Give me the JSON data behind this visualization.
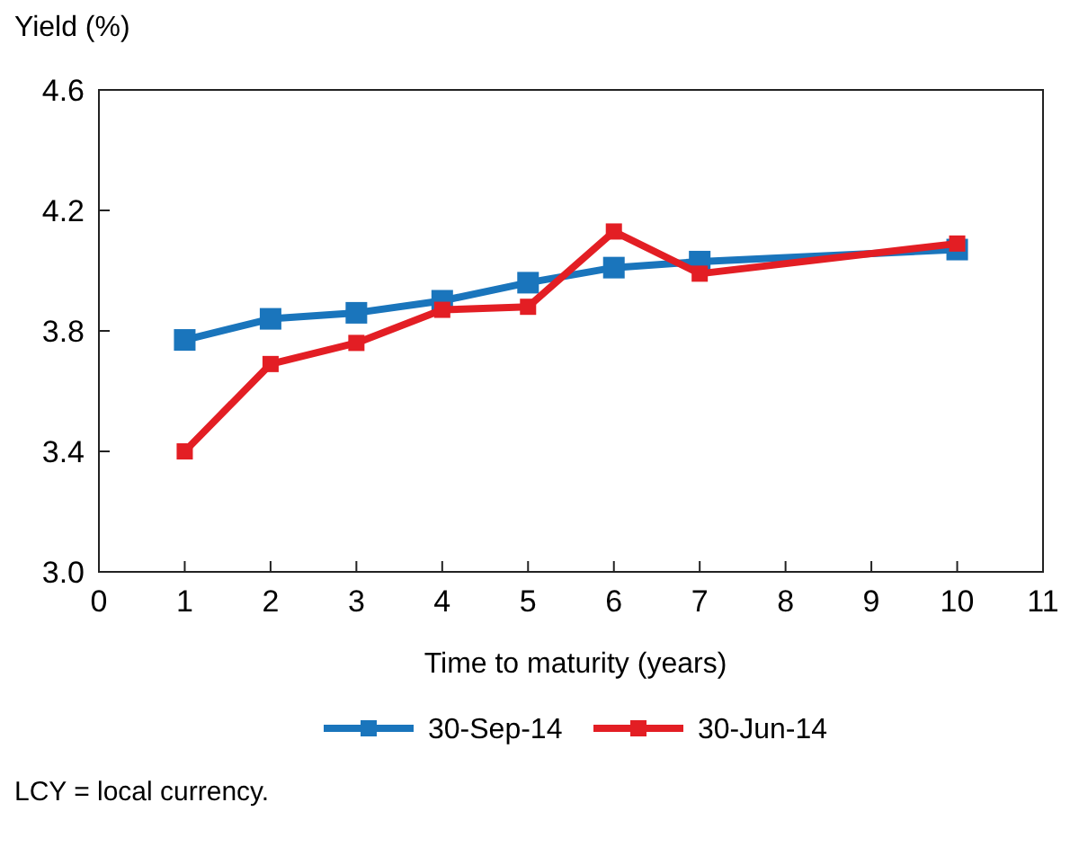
{
  "chart_data": {
    "type": "line",
    "ylabel": "Yield (%)",
    "xlabel": "Time to maturity (years)",
    "xlim": [
      0,
      11
    ],
    "xticks": [
      0,
      1,
      2,
      3,
      4,
      5,
      6,
      7,
      8,
      9,
      10,
      11
    ],
    "ylim": [
      3.0,
      4.6
    ],
    "yticks": [
      {
        "value": 3.0,
        "label": "3.0"
      },
      {
        "value": 3.4,
        "label": "3.4"
      },
      {
        "value": 3.8,
        "label": "3.8"
      },
      {
        "value": 4.2,
        "label": "4.2"
      },
      {
        "value": 4.6,
        "label": "4.6"
      }
    ],
    "grid": false,
    "legend": "bottom",
    "marker": "square",
    "line_style": "solid",
    "series": [
      {
        "name": "30-Sep-14",
        "color": "#1a75bc",
        "x": [
          1,
          2,
          3,
          4,
          5,
          6,
          7,
          10
        ],
        "values": [
          3.77,
          3.84,
          3.86,
          3.9,
          3.96,
          4.01,
          4.03,
          4.07
        ]
      },
      {
        "name": "30-Jun-14",
        "color": "#e31e24",
        "x": [
          1,
          2,
          3,
          4,
          5,
          6,
          7,
          10
        ],
        "values": [
          3.4,
          3.69,
          3.76,
          3.87,
          3.88,
          4.13,
          3.99,
          4.09
        ]
      }
    ],
    "annotations": [
      "LCY = local currency."
    ]
  }
}
